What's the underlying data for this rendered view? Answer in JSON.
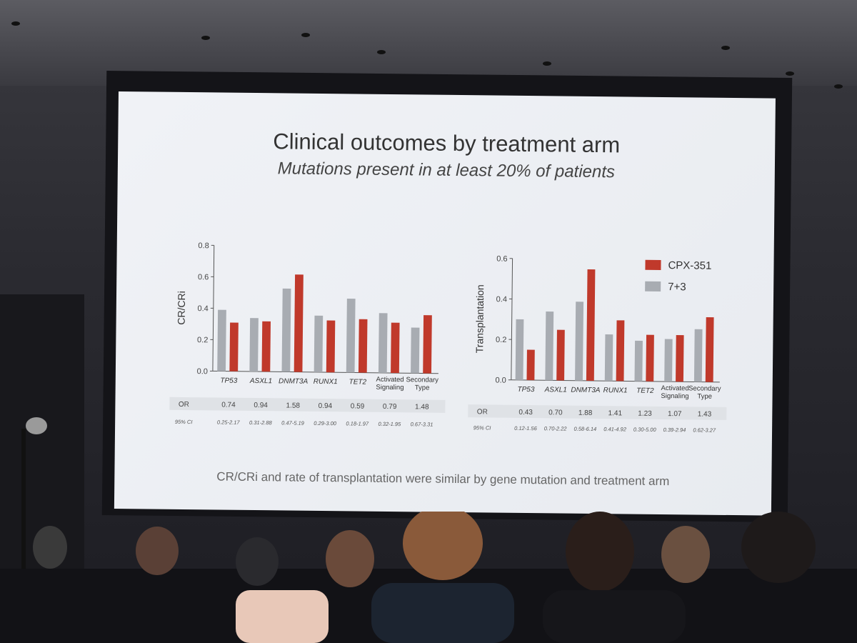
{
  "slide": {
    "title": "Clinical outcomes by treatment arm",
    "subtitle": "Mutations present in at least 20% of patients",
    "footer": "CR/CRi and rate of transplantation were similar by gene mutation and treatment arm"
  },
  "colors": {
    "cpx351": "#c0392b",
    "seven_three": "#a8acb2",
    "table_band": "#dfe2e6"
  },
  "legend": [
    {
      "label": "CPX-351",
      "color": "#c0392b"
    },
    {
      "label": "7+3",
      "color": "#a8acb2"
    }
  ],
  "chart_data": [
    {
      "type": "bar",
      "categories": [
        "TP53",
        "ASXL1",
        "DNMT3A",
        "RUNX1",
        "TET2",
        "Activated Signaling",
        "Secondary Type"
      ],
      "series": [
        {
          "name": "7+3",
          "values": [
            0.39,
            0.34,
            0.53,
            0.36,
            0.47,
            0.38,
            0.29
          ]
        },
        {
          "name": "CPX-351",
          "values": [
            0.31,
            0.32,
            0.62,
            0.33,
            0.34,
            0.32,
            0.37
          ]
        }
      ],
      "ylabel": "CR/CRi",
      "ylim": [
        0,
        0.8
      ],
      "yticks": [
        "0.0",
        "0.2",
        "0.4",
        "0.6",
        "0.8"
      ],
      "table": {
        "row1_label": "OR",
        "row1": [
          "0.74",
          "0.94",
          "1.58",
          "0.94",
          "0.59",
          "0.79",
          "1.48"
        ],
        "row2_label": "95% CI",
        "row2": [
          "0.25-2.17",
          "0.31-2.88",
          "0.47-5.19",
          "0.29-3.00",
          "0.18-1.97",
          "0.32-1.95",
          "0.67-3.31"
        ]
      }
    },
    {
      "type": "bar",
      "categories": [
        "TP53",
        "ASXL1",
        "DNMT3A",
        "RUNX1",
        "TET2",
        "Activated Signaling",
        "Secondary Type"
      ],
      "series": [
        {
          "name": "7+3",
          "values": [
            0.3,
            0.34,
            0.39,
            0.23,
            0.2,
            0.21,
            0.26
          ]
        },
        {
          "name": "CPX-351",
          "values": [
            0.15,
            0.25,
            0.55,
            0.3,
            0.23,
            0.23,
            0.32
          ]
        }
      ],
      "ylabel": "Transplantation",
      "ylim": [
        0,
        0.6
      ],
      "yticks": [
        "0.0",
        "0.2",
        "0.4",
        "0.6"
      ],
      "table": {
        "row1_label": "OR",
        "row1": [
          "0.43",
          "0.70",
          "1.88",
          "1.41",
          "1.23",
          "1.07",
          "1.43"
        ],
        "row2_label": "95% CI",
        "row2": [
          "0.12-1.56",
          "0.70-2.22",
          "0.58-6.14",
          "0.41-4.92",
          "0.30-5.00",
          "0.39-2.94",
          "0.62-3.27"
        ]
      }
    }
  ]
}
